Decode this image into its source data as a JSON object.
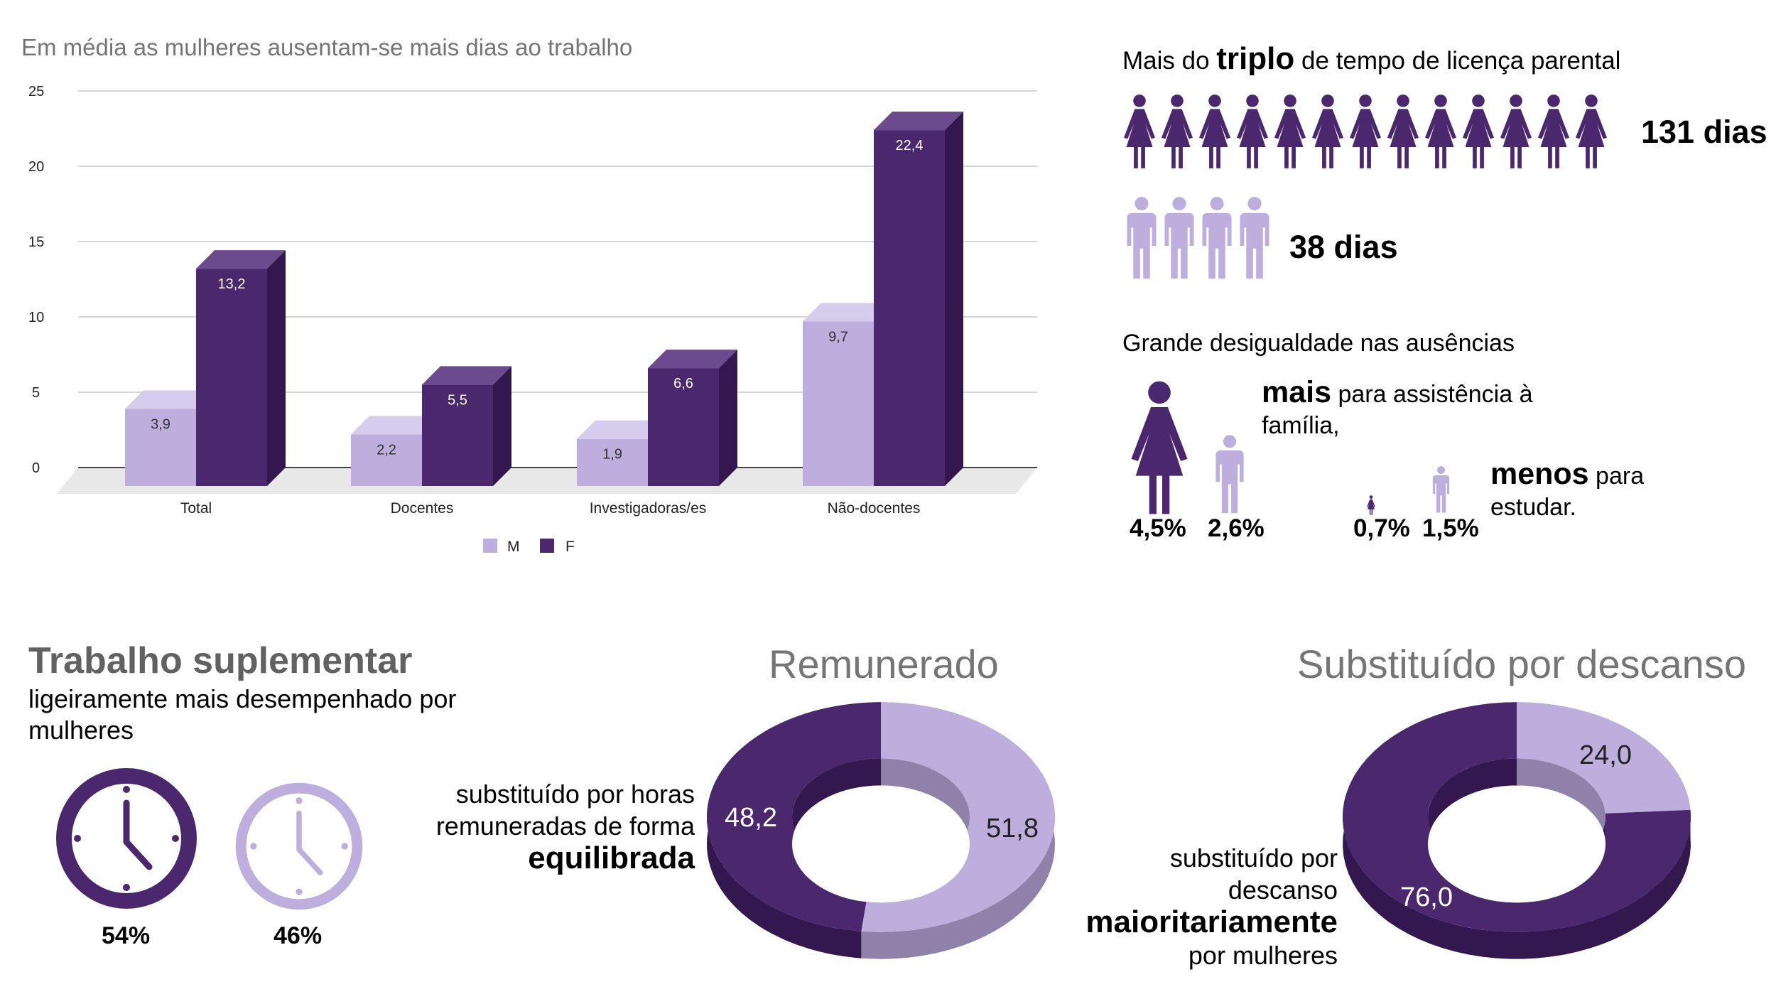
{
  "bar_chart": {
    "title": "Em média as mulheres ausentam-se mais dias ao trabalho",
    "y_ticks": [
      "0",
      "5",
      "10",
      "15",
      "20",
      "25"
    ],
    "legend": [
      {
        "label": "M",
        "color": "#bdaedd"
      },
      {
        "label": "F",
        "color": "#4b286d"
      }
    ],
    "labels_m": [
      "3,9",
      "2,2",
      "1,9",
      "9,7"
    ],
    "labels_f": [
      "13,2",
      "5,5",
      "6,6",
      "22,4"
    ]
  },
  "chart_data": [
    {
      "type": "bar",
      "title": "Em média as mulheres ausentam-se mais dias ao trabalho",
      "categories": [
        "Total",
        "Docentes",
        "Investigadoras/es",
        "Não-docentes"
      ],
      "series": [
        {
          "name": "M",
          "values": [
            3.9,
            2.2,
            1.9,
            9.7
          ],
          "color": "#bdaedd"
        },
        {
          "name": "F",
          "values": [
            13.2,
            5.5,
            6.6,
            22.4
          ],
          "color": "#4b286d"
        }
      ],
      "ylim": [
        0,
        25
      ],
      "y_ticks": [
        0,
        5,
        10,
        15,
        20,
        25
      ],
      "grid": true,
      "legend_position": "bottom"
    },
    {
      "type": "pie",
      "title": "Remunerado",
      "values": [
        51.8,
        48.2
      ],
      "labels": [
        "51,8",
        "48,2"
      ],
      "colors": [
        "#bdaedd",
        "#4b286d"
      ]
    },
    {
      "type": "pie",
      "title": "Substituído por descanso",
      "values": [
        24.0,
        76.0
      ],
      "labels": [
        "24,0",
        "76,0"
      ],
      "colors": [
        "#bdaedd",
        "#4b286d"
      ]
    }
  ],
  "parental_leave": {
    "title_before": "Mais do ",
    "title_bold": "triplo",
    "title_after": " de tempo de licença parental",
    "women_icons": 13,
    "men_icons": 4,
    "women_days": "131 dias",
    "men_days": "38 dias"
  },
  "absences": {
    "title": "Grande desigualdade nas ausências",
    "family_bold": "mais",
    "family_text": " para assistência à família,",
    "study_bold": "menos",
    "study_text": " para estudar.",
    "family_f_pct": "4,5%",
    "family_m_pct": "2,6%",
    "study_f_pct": "0,7%",
    "study_m_pct": "1,5%",
    "family_f_value": 4.5,
    "family_m_value": 2.6,
    "study_f_value": 0.7,
    "study_m_value": 1.5
  },
  "supplementary": {
    "title": "Trabalho suplementar",
    "subtitle": "ligeiramente mais desempenhado por mulheres",
    "women_pct": "54%",
    "men_pct": "46%"
  },
  "paid": {
    "title": "Remunerado",
    "desc_line1": "substituído por horas",
    "desc_line2": "remuneradas de forma",
    "desc_bold": "equilibrada"
  },
  "rest": {
    "title": "Substituído por descanso",
    "desc_line1": "substituído por",
    "desc_line2": "descanso",
    "desc_bold": "maioritariamente",
    "desc_line3": "por mulheres"
  },
  "colors": {
    "light": "#bdaedd",
    "dark": "#4b286d",
    "dark_side": "#33184f",
    "light_side": "#8f81a9"
  }
}
